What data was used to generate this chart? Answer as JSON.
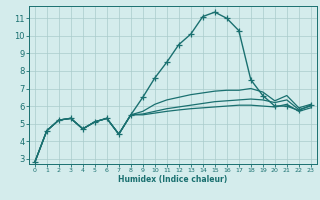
{
  "xlabel": "Humidex (Indice chaleur)",
  "bg_color": "#d4ecec",
  "grid_color": "#aacccc",
  "line_color": "#1a7070",
  "xlim": [
    -0.5,
    23.5
  ],
  "ylim": [
    2.7,
    11.7
  ],
  "yticks": [
    3,
    4,
    5,
    6,
    7,
    8,
    9,
    10,
    11
  ],
  "xticks": [
    0,
    1,
    2,
    3,
    4,
    5,
    6,
    7,
    8,
    9,
    10,
    11,
    12,
    13,
    14,
    15,
    16,
    17,
    18,
    19,
    20,
    21,
    22,
    23
  ],
  "curves": [
    {
      "x": [
        0,
        1,
        2,
        3,
        4,
        5,
        6,
        7,
        8,
        9,
        10,
        11,
        12,
        13,
        14,
        15,
        16,
        17,
        18,
        19,
        20,
        21,
        22,
        23
      ],
      "y": [
        2.8,
        4.6,
        5.2,
        5.3,
        4.7,
        5.1,
        5.3,
        4.4,
        5.5,
        6.5,
        7.6,
        8.5,
        9.5,
        10.1,
        11.1,
        11.35,
        11.0,
        10.3,
        7.5,
        6.6,
        6.0,
        6.0,
        5.75,
        6.05
      ],
      "marker": "+",
      "markersize": 4,
      "linewidth": 1.0,
      "zorder": 4
    },
    {
      "x": [
        0,
        1,
        2,
        3,
        4,
        5,
        6,
        7,
        8,
        9,
        10,
        11,
        12,
        13,
        14,
        15,
        16,
        17,
        18,
        19,
        20,
        21,
        22,
        23
      ],
      "y": [
        2.8,
        4.6,
        5.2,
        5.3,
        4.7,
        5.1,
        5.3,
        4.4,
        5.5,
        5.7,
        6.1,
        6.35,
        6.5,
        6.65,
        6.75,
        6.85,
        6.9,
        6.9,
        7.0,
        6.8,
        6.3,
        6.6,
        5.9,
        6.1
      ],
      "marker": null,
      "markersize": 0,
      "linewidth": 0.9,
      "zorder": 3
    },
    {
      "x": [
        0,
        1,
        2,
        3,
        4,
        5,
        6,
        7,
        8,
        9,
        10,
        11,
        12,
        13,
        14,
        15,
        16,
        17,
        18,
        19,
        20,
        21,
        22,
        23
      ],
      "y": [
        2.8,
        4.6,
        5.2,
        5.3,
        4.7,
        5.1,
        5.3,
        4.4,
        5.5,
        5.55,
        5.7,
        5.85,
        5.95,
        6.05,
        6.15,
        6.25,
        6.3,
        6.35,
        6.4,
        6.35,
        6.2,
        6.35,
        5.8,
        6.0
      ],
      "marker": null,
      "markersize": 0,
      "linewidth": 0.9,
      "zorder": 3
    },
    {
      "x": [
        0,
        1,
        2,
        3,
        4,
        5,
        6,
        7,
        8,
        9,
        10,
        11,
        12,
        13,
        14,
        15,
        16,
        17,
        18,
        19,
        20,
        21,
        22,
        23
      ],
      "y": [
        2.8,
        4.6,
        5.2,
        5.3,
        4.7,
        5.1,
        5.3,
        4.4,
        5.5,
        5.5,
        5.6,
        5.7,
        5.78,
        5.85,
        5.9,
        5.95,
        6.0,
        6.05,
        6.05,
        6.0,
        5.95,
        6.1,
        5.7,
        5.9
      ],
      "marker": null,
      "markersize": 0,
      "linewidth": 0.9,
      "zorder": 3
    }
  ]
}
